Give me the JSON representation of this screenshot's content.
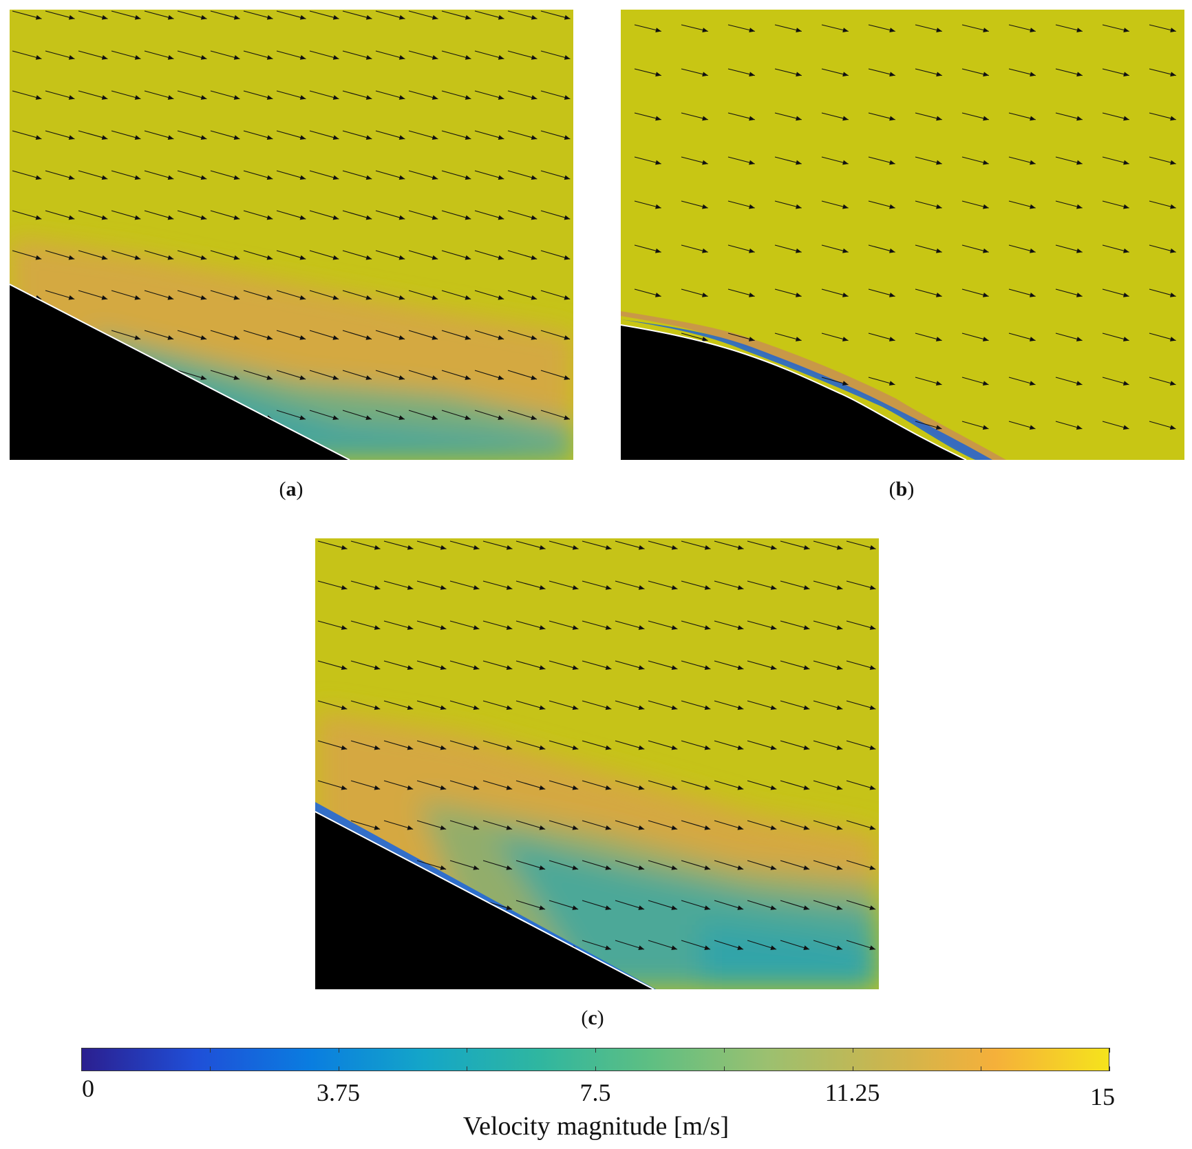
{
  "panels": [
    {
      "id": "a",
      "caption_open": "(",
      "caption_letter": "a",
      "caption_close": ")"
    },
    {
      "id": "b",
      "caption_open": "(",
      "caption_letter": "b",
      "caption_close": ")"
    },
    {
      "id": "c",
      "caption_open": "(",
      "caption_letter": "c",
      "caption_close": ")"
    }
  ],
  "colorbar": {
    "title": "Velocity magnitude [m/s]",
    "min": 0,
    "max": 15,
    "tick_labels": [
      "0",
      "3.75",
      "7.5",
      "11.25",
      "15"
    ],
    "tick_values": [
      0,
      3.75,
      7.5,
      11.25,
      15
    ],
    "minor_tick_values": [
      1.875,
      5.625,
      9.375,
      13.125
    ],
    "colors": [
      "#2b1f8f",
      "#1f4fd8",
      "#0a7de0",
      "#14a6c8",
      "#2fb6a0",
      "#5fbf82",
      "#9bc070",
      "#c9b650",
      "#f5b03a",
      "#f5e31c"
    ]
  },
  "colors": {
    "free_stream": "#c7c416",
    "shear_orange": "#d7a744",
    "wake_teal": "#3fa49a",
    "wall_blue": "#1a62d6",
    "body": "#000000",
    "arrow": "#111111"
  }
}
